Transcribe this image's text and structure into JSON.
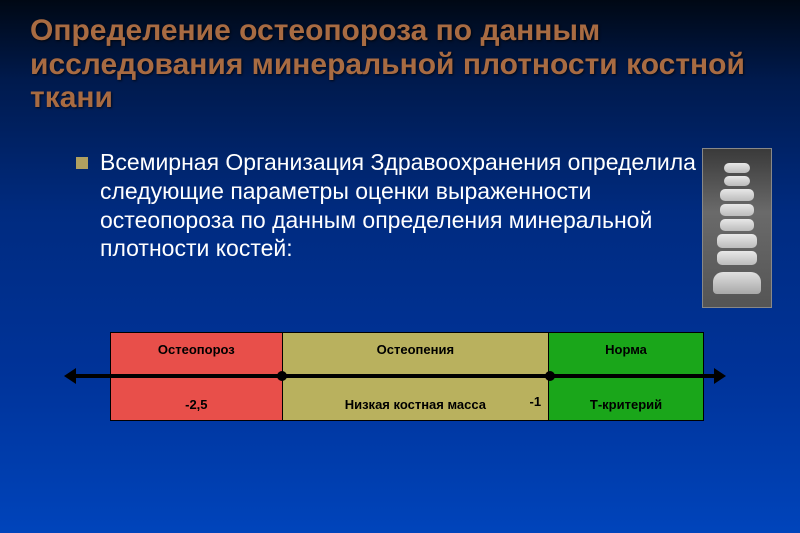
{
  "title": "Определение остеопороза по данным исследования минеральной плотности костной ткани",
  "body": "Всемирная Организация Здравоохранения определила следующие параметры оценки выраженности остеопороза по данным определения минеральной плотности костей:",
  "diagram": {
    "zones": [
      {
        "top": "Остеопороз",
        "bottom": "-2,5",
        "color": "#e84f4a",
        "width_pct": 29
      },
      {
        "top": "Остеопения",
        "bottom": "Низкая костная масса",
        "color": "#b9b15e",
        "width_pct": 45
      },
      {
        "top": "Норма",
        "bottom": "Т-критерий",
        "color": "#1aa61a",
        "width_pct": 26
      }
    ],
    "tick_boundary_1_off_pct": 29,
    "tick_boundary_2_off_pct": 74,
    "boundary2_label": "-1"
  }
}
